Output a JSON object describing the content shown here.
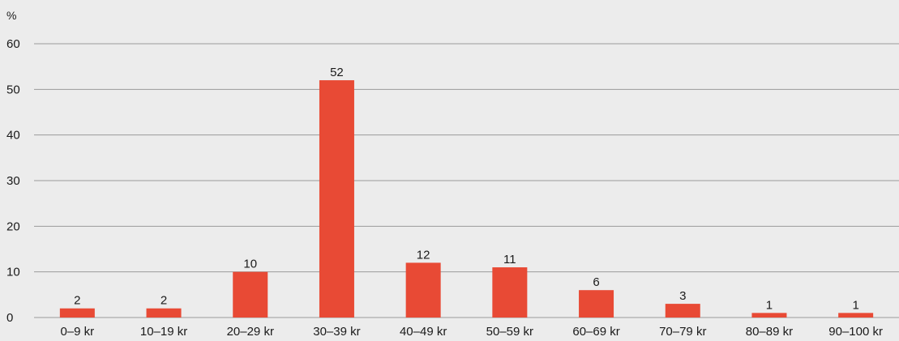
{
  "chart_data": {
    "type": "bar",
    "title": "",
    "xlabel": "",
    "ylabel": "%",
    "ylim": [
      0,
      60
    ],
    "yticks": [
      0,
      10,
      20,
      30,
      40,
      50,
      60
    ],
    "grid": true,
    "categories": [
      "0–9 kr",
      "10–19 kr",
      "20–29 kr",
      "30–39 kr",
      "40–49 kr",
      "50–59 kr",
      "60–69 kr",
      "70–79 kr",
      "80–89 kr",
      "90–100 kr"
    ],
    "values": [
      2,
      2,
      10,
      52,
      12,
      11,
      6,
      3,
      1,
      1
    ],
    "colors": {
      "bar": "#e84a35",
      "grid": "#9a9a9a",
      "text": "#1a1a1a",
      "background": "#ececec"
    }
  }
}
